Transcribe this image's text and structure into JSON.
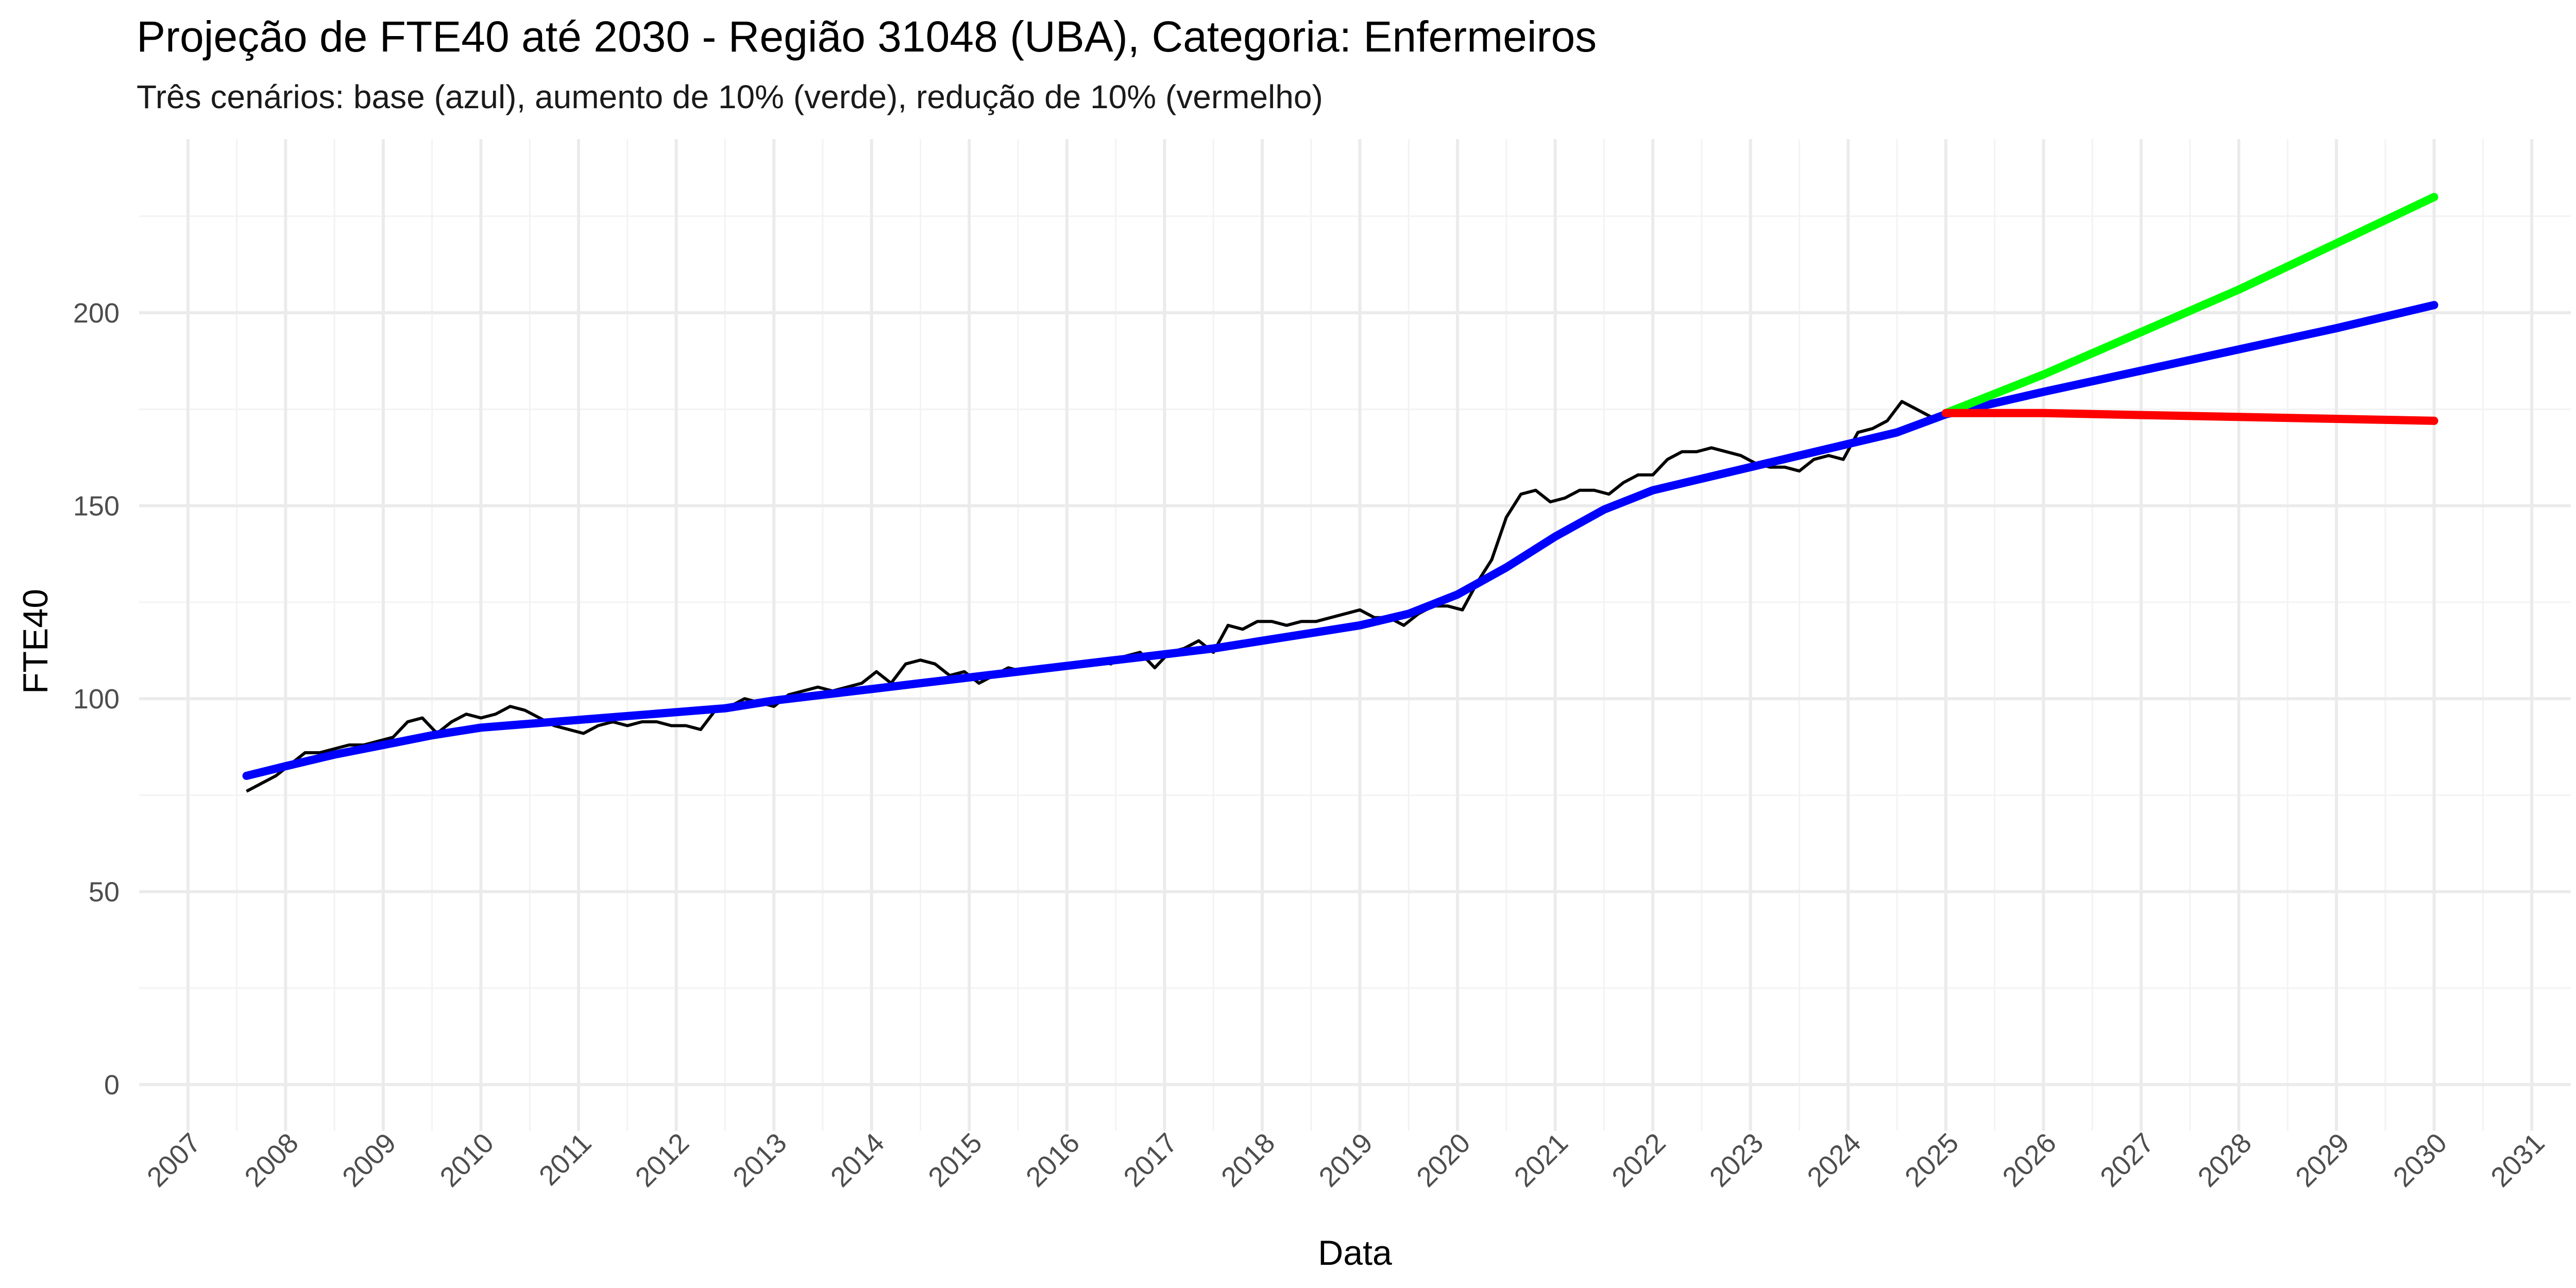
{
  "chart_data": {
    "type": "line",
    "title": "Projeção de FTE40 até 2030 - Região 31048 (UBA), Categoria: Enfermeiros",
    "subtitle": "Três cenários: base (azul), aumento de 10% (verde), redução de 10% (vermelho)",
    "xlabel": "Data",
    "ylabel": "FTE40",
    "xlim": [
      2006.5,
      2031.4
    ],
    "ylim": [
      -12,
      245
    ],
    "x_ticks": [
      "2007",
      "2008",
      "2009",
      "2010",
      "2011",
      "2012",
      "2013",
      "2014",
      "2015",
      "2016",
      "2017",
      "2018",
      "2019",
      "2020",
      "2021",
      "2022",
      "2023",
      "2024",
      "2025",
      "2026",
      "2027",
      "2028",
      "2029",
      "2030",
      "2031"
    ],
    "y_ticks": [
      0,
      50,
      100,
      150,
      200
    ],
    "grid": true,
    "legend": "none",
    "series": [
      {
        "color": "#000000",
        "x": [
          2007.6,
          2007.75,
          2007.9,
          2008.05,
          2008.2,
          2008.35,
          2008.5,
          2008.65,
          2008.8,
          2008.95,
          2009.1,
          2009.25,
          2009.4,
          2009.55,
          2009.7,
          2009.85,
          2010.0,
          2010.15,
          2010.3,
          2010.45,
          2010.6,
          2010.75,
          2010.9,
          2011.05,
          2011.2,
          2011.35,
          2011.5,
          2011.65,
          2011.8,
          2011.95,
          2012.1,
          2012.25,
          2012.4,
          2012.55,
          2012.7,
          2012.85,
          2013.0,
          2013.15,
          2013.3,
          2013.45,
          2013.6,
          2013.75,
          2013.9,
          2014.05,
          2014.2,
          2014.35,
          2014.5,
          2014.65,
          2014.8,
          2014.95,
          2015.1,
          2015.25,
          2015.4,
          2015.55,
          2015.7,
          2015.85,
          2016.0,
          2016.15,
          2016.3,
          2016.45,
          2016.6,
          2016.75,
          2016.9,
          2017.05,
          2017.2,
          2017.35,
          2017.5,
          2017.65,
          2017.8,
          2017.95,
          2018.1,
          2018.25,
          2018.4,
          2018.55,
          2018.7,
          2018.85,
          2019.0,
          2019.15,
          2019.3,
          2019.45,
          2019.6,
          2019.75,
          2019.9,
          2020.05,
          2020.2,
          2020.35,
          2020.5,
          2020.65,
          2020.8,
          2020.95,
          2021.1,
          2021.25,
          2021.4,
          2021.55,
          2021.7,
          2021.85,
          2022.0,
          2022.15,
          2022.3,
          2022.45,
          2022.6,
          2022.75,
          2022.9,
          2023.05,
          2023.2,
          2023.35,
          2023.5,
          2023.65,
          2023.8,
          2023.95,
          2024.1,
          2024.25,
          2024.4,
          2024.55,
          2024.7,
          2024.85,
          2025.0
        ],
        "y": [
          76,
          78,
          80,
          83,
          86,
          86,
          87,
          88,
          88,
          89,
          90,
          94,
          95,
          91,
          94,
          96,
          95,
          96,
          98,
          97,
          95,
          93,
          92,
          91,
          93,
          94,
          93,
          94,
          94,
          93,
          93,
          92,
          97,
          98,
          100,
          99,
          98,
          101,
          102,
          103,
          102,
          103,
          104,
          107,
          104,
          109,
          110,
          109,
          106,
          107,
          104,
          106,
          108,
          107,
          107,
          108,
          108,
          109,
          110,
          109,
          111,
          112,
          108,
          112,
          113,
          115,
          112,
          119,
          118,
          120,
          120,
          119,
          120,
          120,
          121,
          122,
          123,
          121,
          121,
          119,
          122,
          124,
          124,
          123,
          130,
          136,
          147,
          153,
          154,
          151,
          152,
          154,
          154,
          153,
          156,
          158,
          158,
          162,
          164,
          164,
          165,
          164,
          163,
          161,
          160,
          160,
          159,
          162,
          163,
          162,
          169,
          170,
          172,
          177,
          175,
          173,
          174
        ]
      },
      {
        "color": "#0000ff",
        "x": [
          2007.6,
          2008.0,
          2008.5,
          2009.0,
          2009.5,
          2010.0,
          2010.5,
          2011.0,
          2011.5,
          2012.0,
          2012.5,
          2013.0,
          2013.5,
          2014.0,
          2014.5,
          2015.0,
          2015.5,
          2016.0,
          2016.5,
          2017.0,
          2017.5,
          2018.0,
          2018.5,
          2019.0,
          2019.5,
          2020.0,
          2020.5,
          2021.0,
          2021.5,
          2022.0,
          2022.5,
          2023.0,
          2023.5,
          2024.0,
          2024.5,
          2025.0,
          2026.0,
          2027.0,
          2028.0,
          2029.0,
          2030.0
        ],
        "y": [
          80,
          82.5,
          85.5,
          88,
          90.5,
          92.5,
          93.5,
          94.5,
          95.5,
          96.5,
          97.5,
          99.5,
          101,
          102.5,
          104,
          105.5,
          107,
          108.5,
          110,
          111.5,
          113,
          115,
          117,
          119,
          122,
          127,
          134,
          142,
          149,
          154,
          157,
          160,
          163,
          166,
          169,
          173.7,
          179.5,
          185,
          190.5,
          196,
          202
        ]
      },
      {
        "color": "#00ff00",
        "x": [
          2025.0,
          2026.0,
          2027.0,
          2028.0,
          2029.0,
          2030.0
        ],
        "y": [
          174,
          184,
          195,
          206,
          218,
          230
        ]
      },
      {
        "color": "#ff0000",
        "x": [
          2025.0,
          2026.0,
          2027.0,
          2028.0,
          2029.0,
          2030.0
        ],
        "y": [
          174,
          174,
          173.5,
          173,
          172.5,
          172
        ]
      }
    ]
  }
}
